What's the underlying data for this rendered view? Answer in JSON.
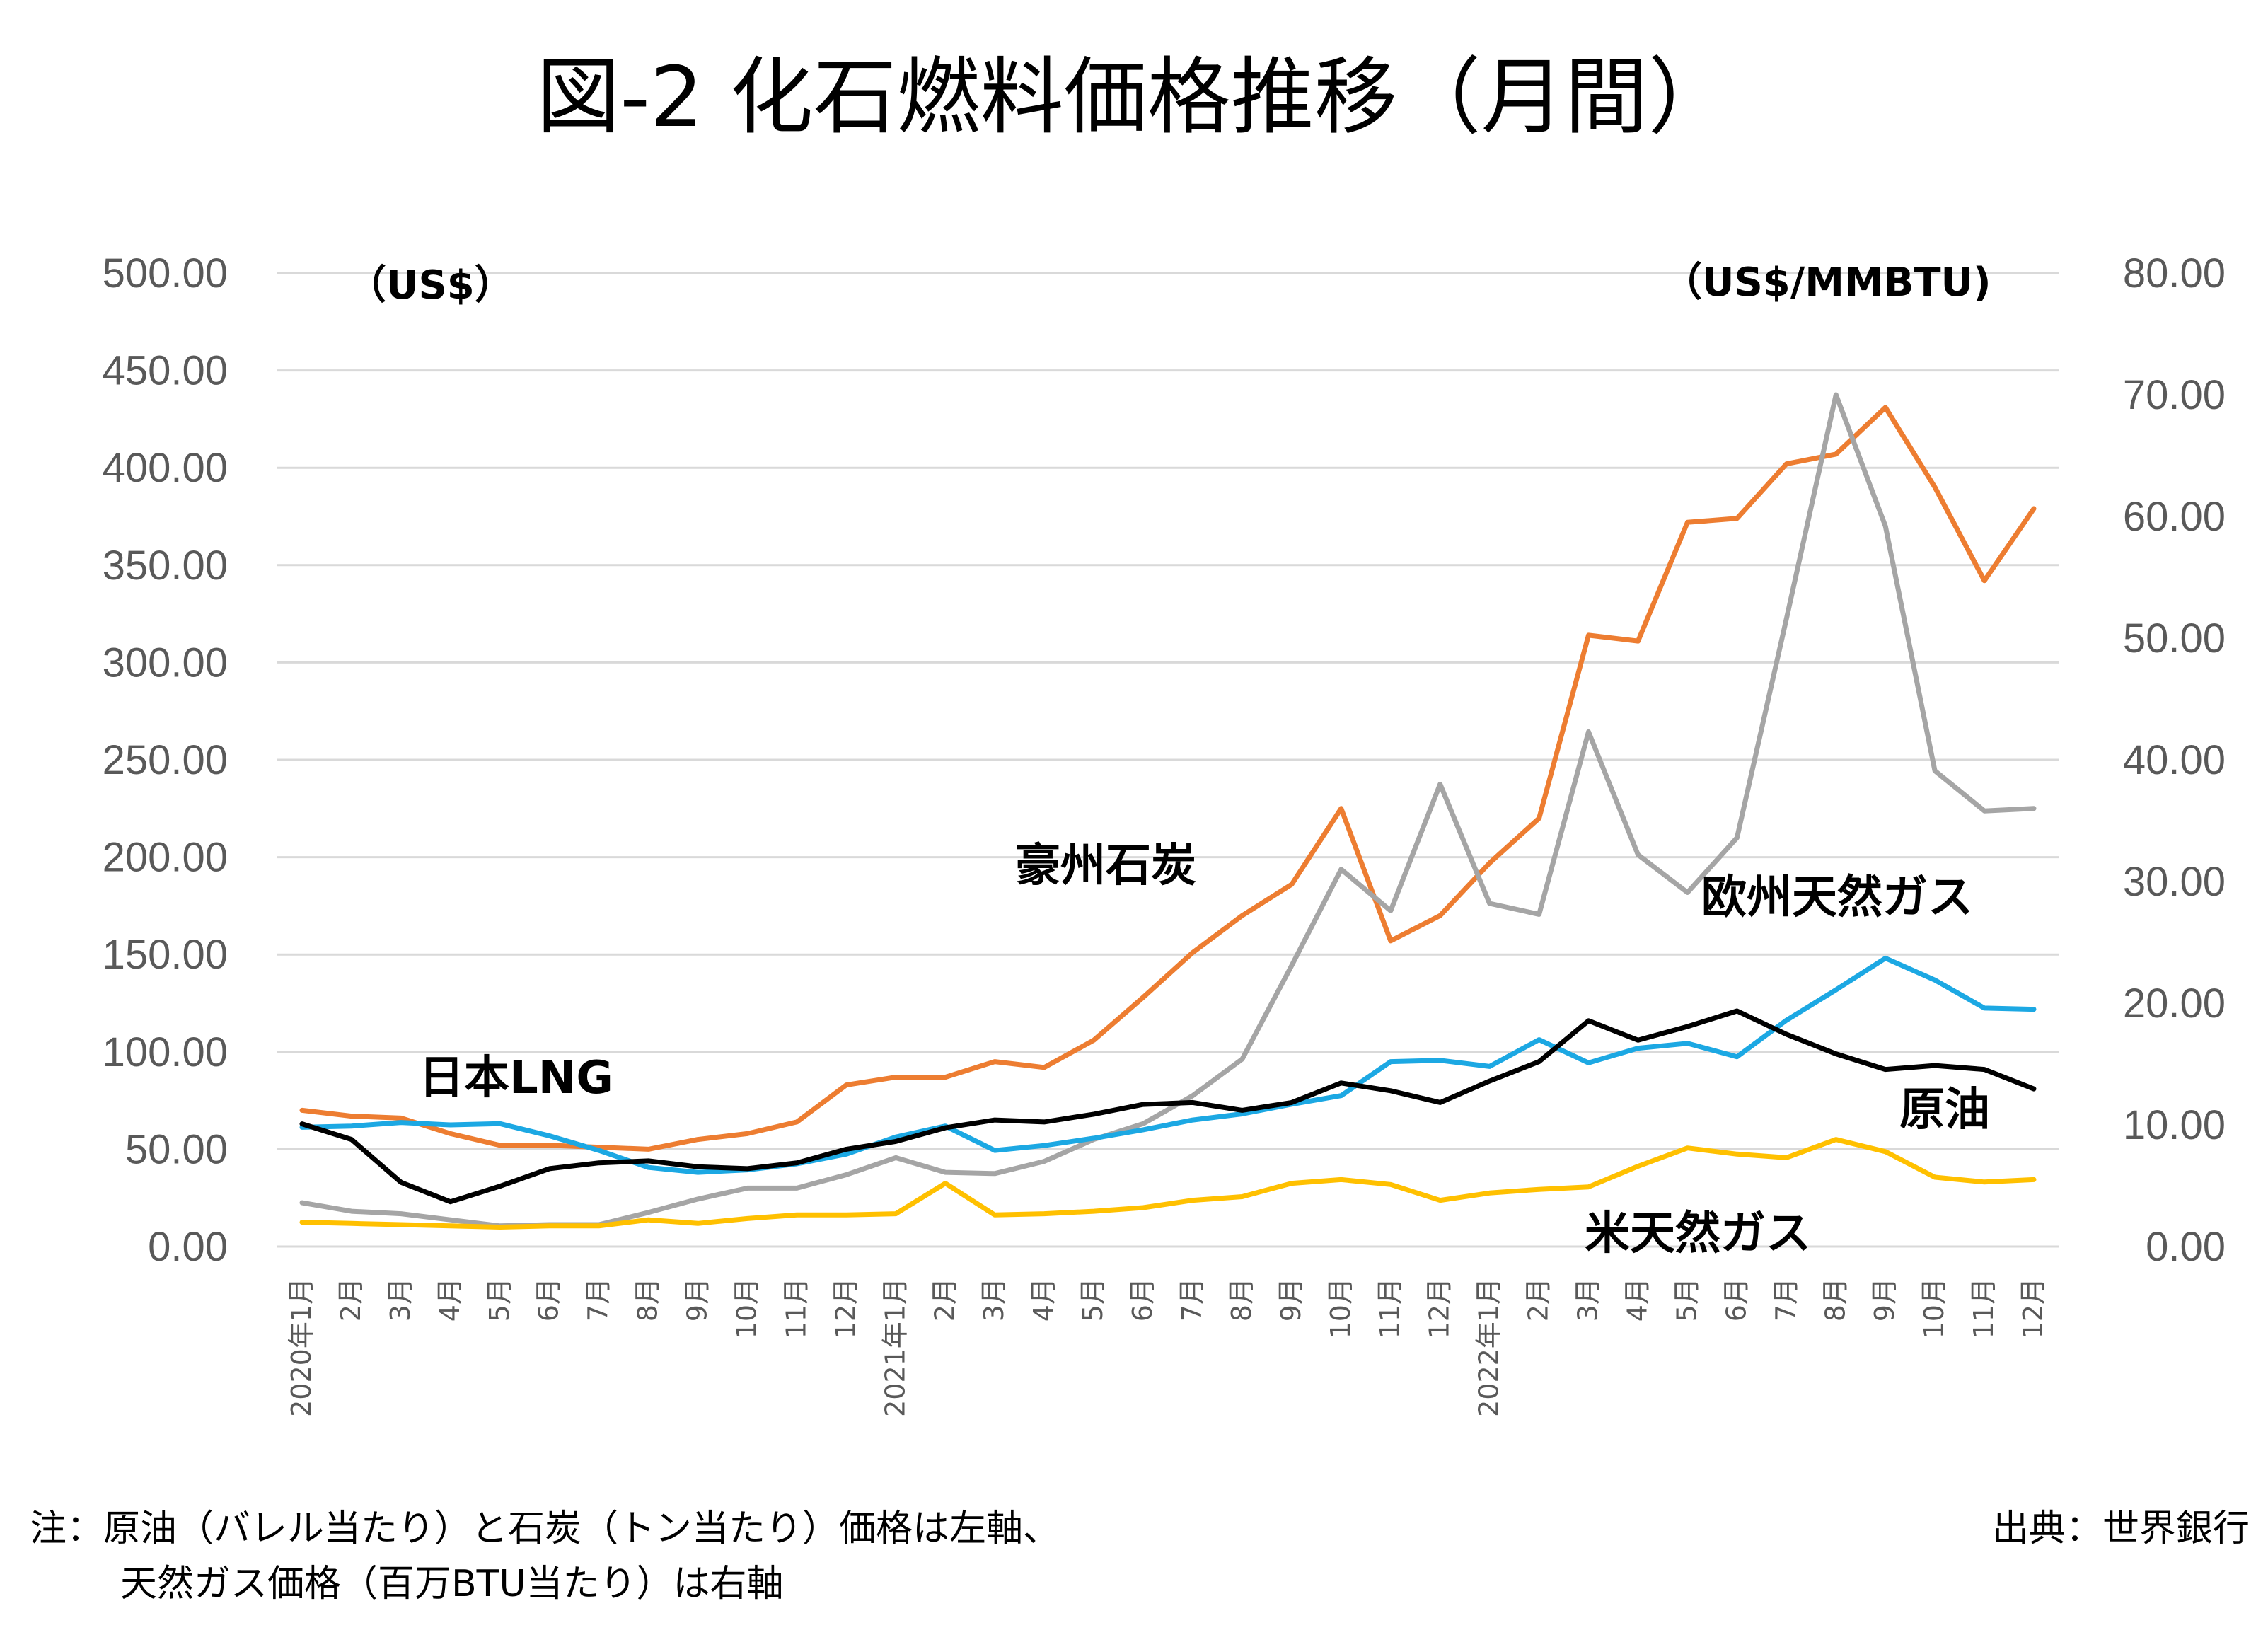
{
  "chart_data": {
    "type": "line",
    "title": "図-2 化石燃料価格推移（月間）",
    "left_axis": {
      "unit": "（US$）",
      "ylim": [
        0,
        500
      ],
      "ticks": [
        "0.00",
        "50.00",
        "100.00",
        "150.00",
        "200.00",
        "250.00",
        "300.00",
        "350.00",
        "400.00",
        "450.00",
        "500.00"
      ]
    },
    "right_axis": {
      "unit": "（US$/MMBTU)",
      "ylim": [
        0,
        80
      ],
      "ticks": [
        "0.00",
        "10.00",
        "20.00",
        "30.00",
        "40.00",
        "50.00",
        "60.00",
        "70.00",
        "80.00"
      ]
    },
    "grid": true,
    "x": [
      "2020年1月",
      "2月",
      "3月",
      "4月",
      "5月",
      "6月",
      "7月",
      "8月",
      "9月",
      "10月",
      "11月",
      "12月",
      "2021年1月",
      "2月",
      "3月",
      "4月",
      "5月",
      "6月",
      "7月",
      "8月",
      "9月",
      "10月",
      "11月",
      "12月",
      "2022年1月",
      "2月",
      "3月",
      "4月",
      "5月",
      "6月",
      "7月",
      "8月",
      "9月",
      "10月",
      "11月",
      "12月"
    ],
    "series": [
      {
        "name": "豪州石炭",
        "axis": "left",
        "color": "#ED7D31",
        "values": [
          70,
          67,
          66,
          58,
          52,
          52,
          51,
          50,
          55,
          58,
          64,
          83,
          87,
          87,
          95,
          92,
          106,
          128,
          151,
          170,
          186,
          225,
          157,
          170,
          197,
          220,
          314,
          311,
          372,
          374,
          402,
          407,
          431,
          390,
          342,
          379
        ]
      },
      {
        "name": "欧州天然ガス",
        "axis": "right",
        "color": "#A5A5A5",
        "values": [
          3.6,
          2.9,
          2.7,
          2.2,
          1.7,
          1.8,
          1.8,
          2.8,
          3.9,
          4.8,
          4.8,
          5.9,
          7.3,
          6.1,
          6.0,
          7.0,
          8.8,
          10.1,
          12.4,
          15.4,
          23.1,
          31.0,
          27.6,
          38.0,
          28.2,
          27.3,
          42.3,
          32.2,
          29.1,
          33.6,
          51.6,
          70.0,
          59.2,
          39.1,
          35.8,
          36.0
        ]
      },
      {
        "name": "日本LNG",
        "axis": "right",
        "color": "#1CA8E3",
        "values": [
          9.8,
          9.9,
          10.2,
          10.0,
          10.1,
          9.1,
          7.9,
          6.5,
          6.1,
          6.3,
          6.8,
          7.6,
          9.0,
          9.9,
          7.9,
          8.3,
          8.9,
          9.6,
          10.4,
          10.9,
          11.7,
          12.4,
          15.2,
          15.3,
          14.8,
          17.0,
          15.1,
          16.3,
          16.7,
          15.6,
          18.6,
          21.1,
          23.7,
          21.9,
          19.6,
          19.5
        ]
      },
      {
        "name": "原油",
        "axis": "left",
        "color": "#000000",
        "values": [
          63,
          55,
          33,
          23,
          31,
          40,
          43,
          44,
          41,
          40,
          43,
          50,
          54,
          61,
          65,
          64,
          68,
          73,
          74,
          70,
          74,
          84,
          80,
          74,
          85,
          95,
          116,
          106,
          113,
          121,
          109,
          99,
          91,
          93,
          91,
          81
        ]
      },
      {
        "name": "米天然ガス",
        "axis": "right",
        "color": "#FFC000",
        "values": [
          2.0,
          1.9,
          1.8,
          1.7,
          1.6,
          1.7,
          1.7,
          2.2,
          1.9,
          2.3,
          2.6,
          2.6,
          2.7,
          5.2,
          2.6,
          2.7,
          2.9,
          3.2,
          3.8,
          4.1,
          5.2,
          5.5,
          5.1,
          3.8,
          4.4,
          4.7,
          4.9,
          6.6,
          8.1,
          7.6,
          7.3,
          8.8,
          7.8,
          5.7,
          5.3,
          5.5
        ]
      }
    ],
    "labels": {
      "coal": "豪州石炭",
      "eugas": "欧州天然ガス",
      "lng": "日本LNG",
      "oil": "原油",
      "usgas": "米天然ガス"
    }
  },
  "notes": {
    "line1": "注：原油（バレル当たり）と石炭（トン当たり）価格は左軸、",
    "line2": "天然ガス価格（百万BTU当たり）は右軸",
    "source": "出典：世界銀行"
  }
}
